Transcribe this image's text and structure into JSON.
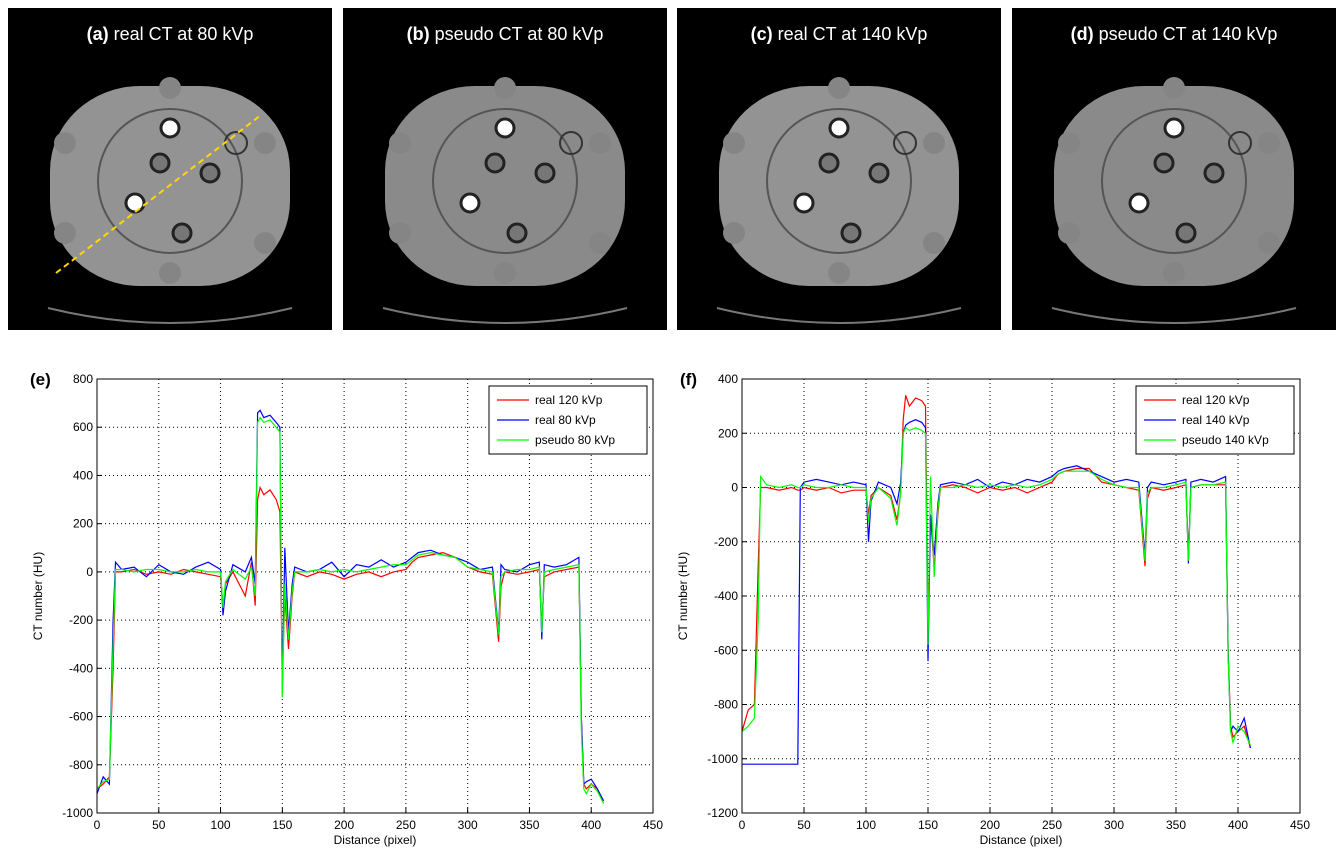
{
  "images": [
    {
      "label": "(a)",
      "title": "real CT at 80 kVp"
    },
    {
      "label": "(b)",
      "title": "pseudo CT at 80 kVp"
    },
    {
      "label": "(c)",
      "title": "real CT at 140 kVp"
    },
    {
      "label": "(d)",
      "title": "pseudo CT at 140 kVp"
    }
  ],
  "chart_data": [
    {
      "type": "line",
      "title": "(e)",
      "xlabel": "Distance (pixel)",
      "ylabel": "CT number (HU)",
      "xlim": [
        0,
        450
      ],
      "xticks": [
        0,
        50,
        100,
        150,
        200,
        250,
        300,
        350,
        400,
        450
      ],
      "ylim": [
        -1000,
        800
      ],
      "yticks": [
        -1000,
        -800,
        -600,
        -400,
        -200,
        0,
        200,
        400,
        600,
        800
      ],
      "grid": true,
      "legend": "upper right",
      "x": [
        0,
        5,
        10,
        13,
        15,
        20,
        30,
        40,
        50,
        60,
        70,
        80,
        90,
        100,
        102,
        104,
        110,
        120,
        125,
        128,
        130,
        132,
        135,
        140,
        145,
        148,
        150,
        152,
        155,
        158,
        160,
        170,
        180,
        190,
        200,
        210,
        220,
        230,
        240,
        250,
        255,
        260,
        270,
        280,
        290,
        300,
        310,
        320,
        325,
        327,
        330,
        340,
        350,
        358,
        360,
        362,
        370,
        380,
        390,
        392,
        394,
        396,
        400,
        405,
        410
      ],
      "series": [
        {
          "name": "real 120 kVp",
          "color": "#ff0000",
          "values": [
            -900,
            -880,
            -850,
            -400,
            0,
            0,
            10,
            -10,
            0,
            -10,
            10,
            0,
            -10,
            -20,
            -150,
            -50,
            0,
            -100,
            40,
            -140,
            300,
            350,
            320,
            340,
            300,
            250,
            -450,
            -100,
            -320,
            -100,
            0,
            -20,
            0,
            -10,
            -30,
            -10,
            0,
            -20,
            0,
            10,
            40,
            60,
            70,
            80,
            60,
            20,
            0,
            -10,
            -290,
            -60,
            0,
            -10,
            0,
            10,
            -230,
            -20,
            0,
            10,
            20,
            -600,
            -880,
            -900,
            -880,
            -900,
            -960
          ]
        },
        {
          "name": "real 80 kVp",
          "color": "#0000ff",
          "values": [
            -920,
            -850,
            -880,
            -200,
            40,
            10,
            20,
            -20,
            30,
            0,
            -10,
            20,
            40,
            10,
            -180,
            -80,
            30,
            0,
            60,
            -50,
            660,
            670,
            640,
            650,
            620,
            600,
            -500,
            100,
            -250,
            -50,
            20,
            0,
            10,
            40,
            -20,
            30,
            20,
            50,
            20,
            40,
            60,
            80,
            90,
            70,
            60,
            40,
            10,
            20,
            -250,
            30,
            10,
            0,
            30,
            40,
            -280,
            30,
            20,
            30,
            60,
            -600,
            -880,
            -870,
            -860,
            -900,
            -950
          ]
        },
        {
          "name": "pseudo 80 kVp",
          "color": "#00ff00",
          "values": [
            -900,
            -870,
            -860,
            -300,
            10,
            10,
            0,
            10,
            10,
            0,
            0,
            10,
            0,
            0,
            -150,
            -40,
            10,
            -30,
            20,
            -100,
            620,
            640,
            620,
            630,
            600,
            580,
            -520,
            -50,
            -280,
            -80,
            0,
            0,
            10,
            0,
            10,
            0,
            10,
            20,
            30,
            30,
            50,
            70,
            80,
            70,
            60,
            20,
            10,
            0,
            -260,
            -20,
            0,
            10,
            10,
            20,
            -250,
            0,
            10,
            20,
            30,
            -650,
            -900,
            -920,
            -880,
            -910,
            -960
          ]
        }
      ]
    },
    {
      "type": "line",
      "title": "(f)",
      "xlabel": "Distance (pixel)",
      "ylabel": "CT number (HU)",
      "xlim": [
        0,
        450
      ],
      "xticks": [
        0,
        50,
        100,
        150,
        200,
        250,
        300,
        350,
        400,
        450
      ],
      "ylim": [
        -1200,
        400
      ],
      "yticks": [
        -1200,
        -1000,
        -800,
        -600,
        -400,
        -200,
        0,
        200,
        400
      ],
      "grid": true,
      "legend": "upper right",
      "x": [
        0,
        5,
        10,
        13,
        15,
        20,
        30,
        40,
        45,
        47,
        50,
        60,
        70,
        80,
        90,
        100,
        102,
        104,
        110,
        120,
        125,
        128,
        130,
        132,
        135,
        140,
        145,
        148,
        150,
        152,
        155,
        158,
        160,
        170,
        180,
        190,
        200,
        210,
        220,
        230,
        240,
        250,
        255,
        260,
        270,
        280,
        290,
        300,
        310,
        320,
        325,
        327,
        330,
        340,
        350,
        358,
        360,
        362,
        370,
        380,
        390,
        392,
        394,
        396,
        400,
        405,
        410
      ],
      "series": [
        {
          "name": "real 120 kVp",
          "color": "#ff0000",
          "values": [
            -900,
            -820,
            -800,
            -300,
            0,
            0,
            -10,
            0,
            -10,
            -10,
            0,
            -10,
            0,
            -20,
            -10,
            -10,
            -100,
            -30,
            0,
            -30,
            -120,
            -20,
            250,
            340,
            300,
            330,
            320,
            300,
            -500,
            -100,
            -300,
            -100,
            0,
            10,
            0,
            -20,
            0,
            -10,
            0,
            -20,
            0,
            20,
            50,
            60,
            70,
            70,
            20,
            10,
            0,
            -10,
            -290,
            -40,
            0,
            -10,
            0,
            10,
            -250,
            0,
            10,
            10,
            10,
            -600,
            -880,
            -920,
            -900,
            -880,
            -960
          ]
        },
        {
          "name": "real 140 kVp",
          "color": "#0000ff",
          "values": [
            -1020,
            -1020,
            -1020,
            -1020,
            -1020,
            -1020,
            -1020,
            -1020,
            -1020,
            0,
            20,
            30,
            20,
            10,
            20,
            10,
            -200,
            -50,
            20,
            0,
            -60,
            20,
            200,
            230,
            240,
            250,
            240,
            220,
            -640,
            -100,
            -250,
            -60,
            10,
            20,
            10,
            30,
            0,
            20,
            10,
            30,
            20,
            40,
            60,
            70,
            80,
            60,
            40,
            20,
            30,
            20,
            -250,
            0,
            20,
            10,
            20,
            30,
            -280,
            20,
            30,
            20,
            40,
            -600,
            -900,
            -880,
            -900,
            -850,
            -960
          ]
        },
        {
          "name": "pseudo 140 kVp",
          "color": "#00ff00",
          "values": [
            -900,
            -880,
            -850,
            -500,
            40,
            10,
            0,
            10,
            0,
            0,
            10,
            0,
            0,
            10,
            0,
            0,
            -130,
            -40,
            0,
            -40,
            -140,
            -20,
            200,
            220,
            210,
            220,
            210,
            200,
            -580,
            40,
            -330,
            -80,
            0,
            0,
            10,
            0,
            10,
            0,
            10,
            0,
            10,
            30,
            50,
            60,
            60,
            60,
            30,
            10,
            0,
            0,
            -270,
            -20,
            0,
            0,
            10,
            20,
            -270,
            0,
            10,
            10,
            20,
            -620,
            -900,
            -940,
            -880,
            -900,
            -950
          ]
        }
      ]
    }
  ]
}
